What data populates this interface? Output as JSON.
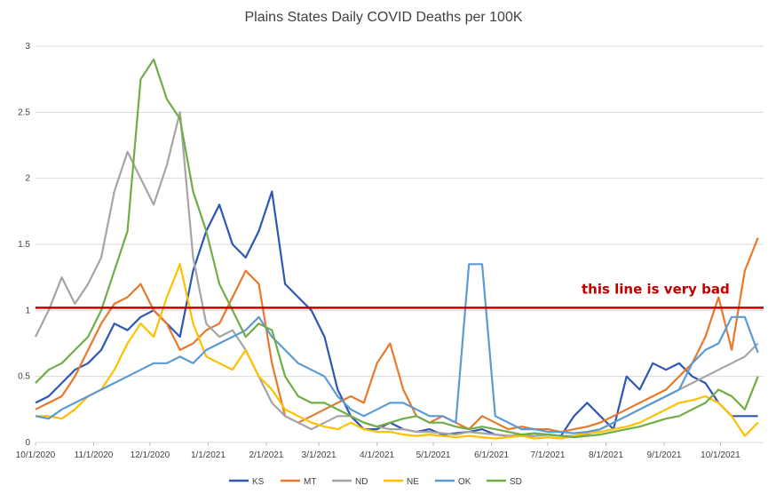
{
  "chart_data": {
    "type": "line",
    "title": "Plains States Daily COVID Deaths per 100K",
    "xlabel": "",
    "ylabel": "",
    "x_tick_labels": [
      "10/1/2020",
      "11/1/2020",
      "12/1/2020",
      "1/1/2021",
      "2/1/2021",
      "3/1/2021",
      "4/1/2021",
      "5/1/2021",
      "6/1/2021",
      "7/1/2021",
      "8/1/2021",
      "9/1/2021",
      "10/1/2021"
    ],
    "x_start": "2020-10-01",
    "x_end": "2021-10-24",
    "x_step_days": 7,
    "y_tick_labels": [
      "0",
      "0.5",
      "1",
      "1.5",
      "2",
      "2.5",
      "3"
    ],
    "ylim": [
      0,
      3
    ],
    "grid": true,
    "legend_position": "bottom",
    "annotation": {
      "text": "this line is very bad",
      "y": 1.02,
      "color": "#c00000"
    },
    "series": [
      {
        "name": "KS",
        "color": "#2e56b5",
        "values": [
          0.3,
          0.35,
          0.45,
          0.55,
          0.6,
          0.7,
          0.9,
          0.85,
          0.95,
          1.0,
          0.9,
          0.8,
          1.3,
          1.6,
          1.8,
          1.5,
          1.4,
          1.6,
          1.9,
          1.2,
          1.1,
          1.0,
          0.8,
          0.4,
          0.2,
          0.1,
          0.1,
          0.15,
          0.1,
          0.08,
          0.1,
          0.06,
          0.07,
          0.08,
          0.1,
          0.06,
          0.05,
          0.05,
          0.05,
          0.06,
          0.05,
          0.2,
          0.3,
          0.2,
          0.1,
          0.5,
          0.4,
          0.6,
          0.55,
          0.6,
          0.5,
          0.45,
          0.3,
          0.2,
          0.2,
          0.2
        ]
      },
      {
        "name": "MT",
        "color": "#e8792b",
        "values": [
          0.25,
          0.3,
          0.35,
          0.5,
          0.7,
          0.9,
          1.05,
          1.1,
          1.2,
          1.0,
          0.9,
          0.7,
          0.75,
          0.85,
          0.9,
          1.1,
          1.3,
          1.2,
          0.6,
          0.2,
          0.15,
          0.2,
          0.25,
          0.3,
          0.35,
          0.3,
          0.6,
          0.75,
          0.4,
          0.2,
          0.15,
          0.2,
          0.15,
          0.1,
          0.2,
          0.15,
          0.1,
          0.12,
          0.1,
          0.1,
          0.08,
          0.1,
          0.12,
          0.15,
          0.2,
          0.25,
          0.3,
          0.35,
          0.4,
          0.5,
          0.6,
          0.8,
          1.1,
          0.7,
          1.3,
          1.55
        ]
      },
      {
        "name": "ND",
        "color": "#a5a5a5",
        "values": [
          0.8,
          1.0,
          1.25,
          1.05,
          1.2,
          1.4,
          1.9,
          2.2,
          2.0,
          1.8,
          2.1,
          2.5,
          1.4,
          0.9,
          0.8,
          0.85,
          0.7,
          0.5,
          0.3,
          0.2,
          0.15,
          0.1,
          0.15,
          0.2,
          0.2,
          0.15,
          0.12,
          0.1,
          0.1,
          0.08,
          0.08,
          0.07,
          0.06,
          0.08,
          0.07,
          0.06,
          0.05,
          0.06,
          0.05,
          0.06,
          0.05,
          0.05,
          0.06,
          0.1,
          0.15,
          0.2,
          0.25,
          0.3,
          0.35,
          0.4,
          0.45,
          0.5,
          0.55,
          0.6,
          0.65,
          0.75
        ]
      },
      {
        "name": "NE",
        "color": "#ffc000",
        "values": [
          0.2,
          0.2,
          0.18,
          0.25,
          0.35,
          0.4,
          0.55,
          0.75,
          0.9,
          0.8,
          1.1,
          1.35,
          0.9,
          0.65,
          0.6,
          0.55,
          0.7,
          0.5,
          0.4,
          0.25,
          0.2,
          0.15,
          0.12,
          0.1,
          0.15,
          0.1,
          0.08,
          0.08,
          0.06,
          0.05,
          0.06,
          0.05,
          0.04,
          0.05,
          0.04,
          0.03,
          0.04,
          0.05,
          0.03,
          0.04,
          0.03,
          0.05,
          0.07,
          0.08,
          0.1,
          0.12,
          0.15,
          0.2,
          0.25,
          0.3,
          0.32,
          0.35,
          0.3,
          0.2,
          0.05,
          0.15
        ]
      },
      {
        "name": "OK",
        "color": "#5b9bd5",
        "values": [
          0.2,
          0.18,
          0.25,
          0.3,
          0.35,
          0.4,
          0.45,
          0.5,
          0.55,
          0.6,
          0.6,
          0.65,
          0.6,
          0.7,
          0.75,
          0.8,
          0.85,
          0.95,
          0.8,
          0.7,
          0.6,
          0.55,
          0.5,
          0.35,
          0.25,
          0.2,
          0.25,
          0.3,
          0.3,
          0.25,
          0.2,
          0.2,
          0.15,
          1.35,
          1.35,
          0.2,
          0.15,
          0.1,
          0.1,
          0.08,
          0.08,
          0.07,
          0.08,
          0.1,
          0.15,
          0.2,
          0.25,
          0.3,
          0.35,
          0.4,
          0.6,
          0.7,
          0.75,
          0.95,
          0.95,
          0.68
        ]
      },
      {
        "name": "SD",
        "color": "#70ad47",
        "values": [
          0.45,
          0.55,
          0.6,
          0.7,
          0.8,
          1.0,
          1.3,
          1.6,
          2.75,
          2.9,
          2.6,
          2.45,
          1.9,
          1.6,
          1.2,
          1.0,
          0.8,
          0.9,
          0.85,
          0.5,
          0.35,
          0.3,
          0.3,
          0.25,
          0.2,
          0.15,
          0.12,
          0.15,
          0.18,
          0.2,
          0.15,
          0.15,
          0.12,
          0.1,
          0.12,
          0.1,
          0.08,
          0.06,
          0.07,
          0.06,
          0.05,
          0.04,
          0.05,
          0.06,
          0.08,
          0.1,
          0.12,
          0.15,
          0.18,
          0.2,
          0.25,
          0.3,
          0.4,
          0.35,
          0.25,
          0.5
        ]
      }
    ]
  }
}
